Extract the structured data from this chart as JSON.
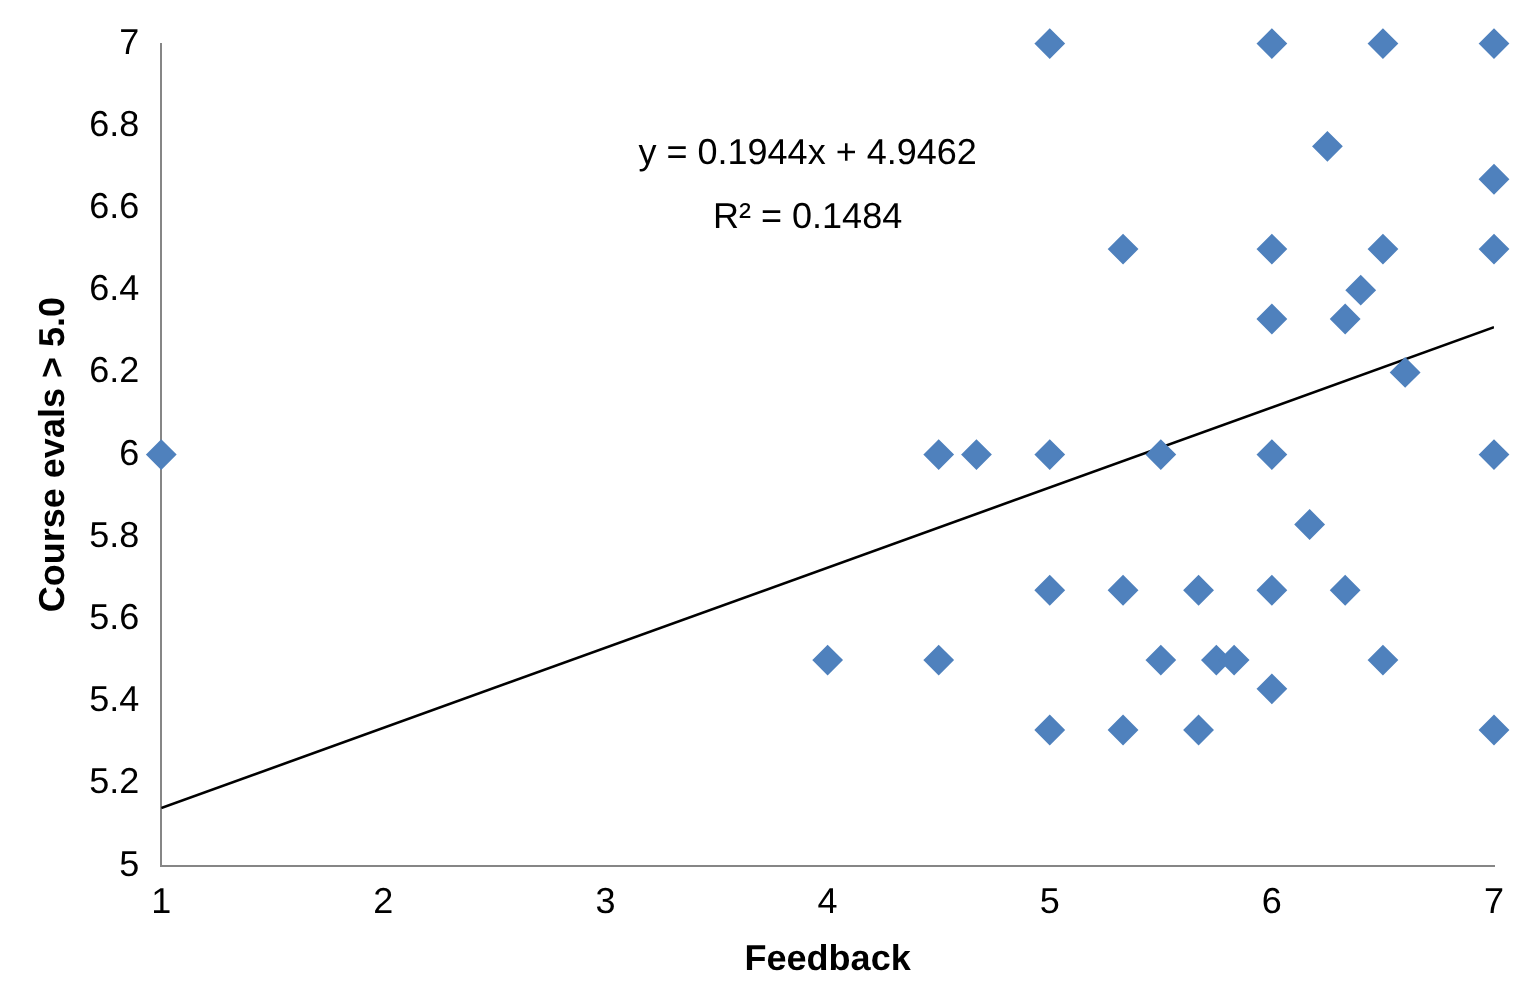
{
  "chart_data": {
    "type": "scatter",
    "xlabel": "Feedback",
    "ylabel": "Course evals > 5.0",
    "xlim": [
      1,
      7
    ],
    "xticks": [
      1,
      2,
      3,
      4,
      5,
      6,
      7
    ],
    "ylim": [
      5,
      7
    ],
    "yticks": [
      5,
      5.2,
      5.4,
      5.6,
      5.8,
      6,
      6.2,
      6.4,
      6.6,
      6.8,
      7
    ],
    "legend": false,
    "annotations": [
      "y = 0.1944x + 4.9462",
      "R² = 0.1484"
    ],
    "series": [
      {
        "marker": "diamond",
        "color": "#4f81bd",
        "x": [
          1,
          4,
          4.5,
          4.5,
          4.67,
          5,
          5,
          5,
          5,
          5.33,
          5.33,
          5.33,
          5.5,
          5.5,
          5.67,
          5.67,
          5.75,
          5.83,
          6,
          6,
          6,
          6,
          6,
          6,
          6.17,
          6.25,
          6.33,
          6.33,
          6.4,
          6.5,
          6.5,
          6.5,
          6.6,
          7,
          7,
          7,
          7,
          7
        ],
        "values": [
          6,
          5.5,
          6,
          5.5,
          6,
          7,
          6,
          5.67,
          5.33,
          6.5,
          5.67,
          5.33,
          6,
          5.5,
          5.33,
          5.67,
          5.5,
          5.5,
          7,
          6.5,
          6.33,
          6,
          5.67,
          5.43,
          5.83,
          6.75,
          6.33,
          5.67,
          6.4,
          6.5,
          7,
          5.5,
          6.2,
          7,
          6.67,
          6.5,
          6,
          5.33
        ]
      },
      {
        "type": "line",
        "marker": "none",
        "color": "#000000",
        "x": [
          1,
          7
        ],
        "values": [
          5.14,
          6.31
        ]
      }
    ]
  }
}
